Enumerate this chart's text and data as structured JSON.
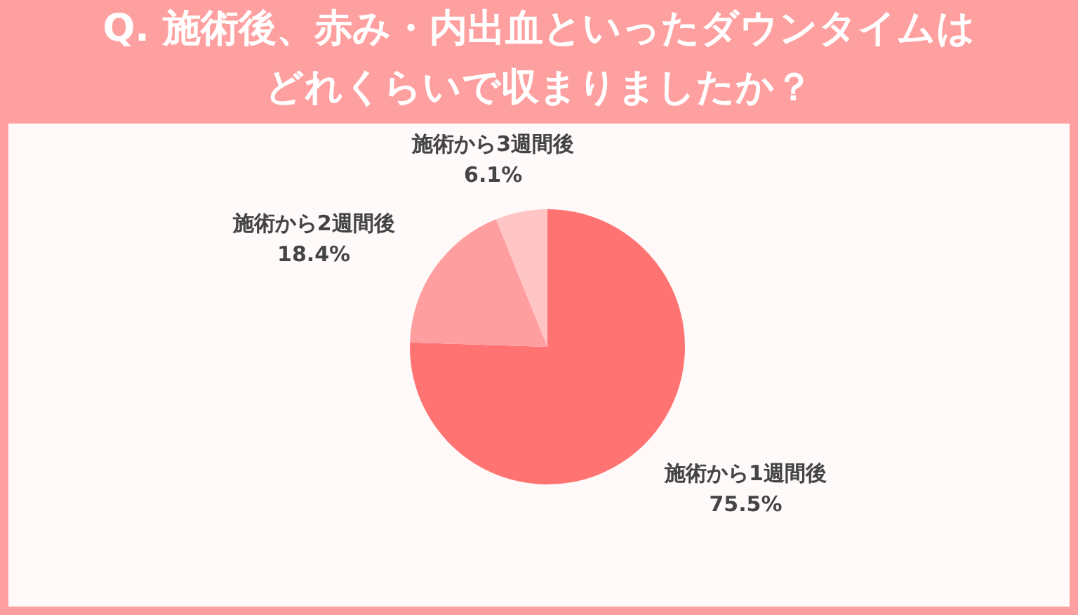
{
  "chart_data": {
    "type": "pie",
    "title": "Q. 施術後、赤み・内出血といったダウンタイムはどれくらいで収まりましたか？",
    "categories": [
      "施術から1週間後",
      "施術から2週間後",
      "施術から3週間後"
    ],
    "values": [
      75.5,
      18.4,
      6.1
    ],
    "colors": [
      "#ff7373",
      "#ff9e9e",
      "#ffc4c4"
    ],
    "value_labels": [
      "75.5%",
      "18.4%",
      "6.1%"
    ]
  }
}
